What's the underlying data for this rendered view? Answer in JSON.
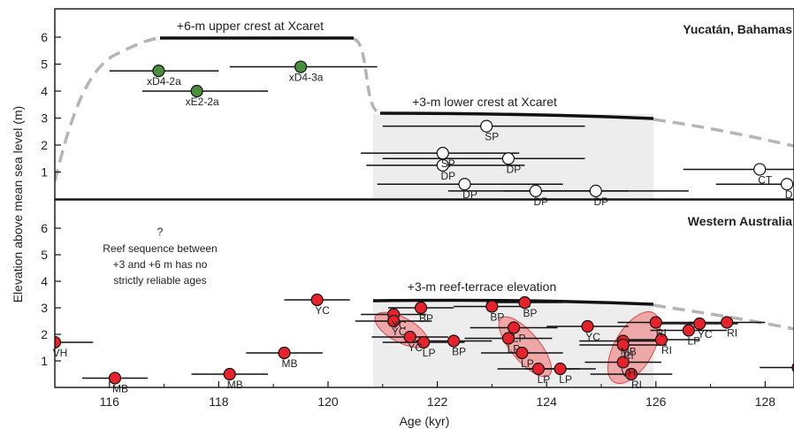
{
  "chart_data": [
    {
      "type": "scatter",
      "region_label": "Yucatán, Bahamas",
      "ylim": [
        0,
        6.7
      ],
      "xlim": [
        115,
        128.8
      ],
      "yticks": [
        "1",
        "2",
        "3",
        "4",
        "5",
        "6"
      ],
      "shaded_range": [
        121,
        126.2
      ],
      "annotations": [
        {
          "text": "+6-m upper crest at Xcaret",
          "x": 118.9,
          "y": 6.35
        },
        {
          "text": "+3-m lower crest at Xcaret",
          "x": 123.0,
          "y": 3.45
        }
      ],
      "points": [
        {
          "label": "xD4-2a",
          "x": 116.9,
          "y": 4.75,
          "xerr": [
            116.0,
            118.0
          ],
          "fill": "#4a8f3a"
        },
        {
          "label": "xE2-2a",
          "x": 117.6,
          "y": 4.0,
          "xerr": [
            116.6,
            118.9
          ],
          "fill": "#4a8f3a"
        },
        {
          "label": "xD4-3a",
          "x": 119.5,
          "y": 4.9,
          "xerr": [
            118.2,
            120.9
          ],
          "fill": "#4a8f3a"
        },
        {
          "label": "SP",
          "x": 122.9,
          "y": 2.7,
          "xerr": [
            121.0,
            124.7
          ],
          "fill": "#ffffff"
        },
        {
          "label": "SP",
          "x": 122.1,
          "y": 1.7,
          "xerr": [
            120.6,
            123.5
          ],
          "fill": "#ffffff"
        },
        {
          "label": "DP",
          "x": 123.3,
          "y": 1.5,
          "xerr": [
            121.0,
            124.7
          ],
          "fill": "#ffffff"
        },
        {
          "label": "DP",
          "x": 122.1,
          "y": 1.25,
          "xerr": [
            120.7,
            123.6
          ],
          "fill": "#ffffff"
        },
        {
          "label": "DP",
          "x": 122.5,
          "y": 0.55,
          "xerr": [
            120.9,
            124.3
          ],
          "fill": "#ffffff"
        },
        {
          "label": "DP",
          "x": 123.8,
          "y": 0.3,
          "xerr": [
            122.2,
            125.5
          ],
          "fill": "#ffffff"
        },
        {
          "label": "DP",
          "x": 124.9,
          "y": 0.3,
          "xerr": [
            123.2,
            126.6
          ],
          "fill": "#ffffff"
        },
        {
          "label": "CT",
          "x": 127.9,
          "y": 1.1,
          "xerr": [
            126.5,
            129.4
          ],
          "fill": "#ffffff"
        },
        {
          "label": "DP",
          "x": 128.4,
          "y": 0.55,
          "xerr": [
            127.1,
            129.9
          ],
          "fill": "#ffffff"
        }
      ]
    },
    {
      "type": "scatter",
      "region_label": "Western Australia",
      "ylim": [
        0,
        6.7
      ],
      "xlim": [
        115,
        128.8
      ],
      "yticks": [
        "1",
        "2",
        "3",
        "4",
        "5",
        "6"
      ],
      "xticks": [
        "116",
        "118",
        "120",
        "122",
        "124",
        "126",
        "128"
      ],
      "xlabel": "Age (kyr)",
      "ylabel": "Elevation above mean sea level (m)",
      "shaded_range": [
        121,
        126.2
      ],
      "note_lines": [
        "?",
        "Reef sequence between",
        "+3 and +6 m has no",
        "strictly reliable ages"
      ],
      "annotations": [
        {
          "text": "+3-m reef-terrace elevation",
          "x": 123.3,
          "y": 3.65
        }
      ],
      "points": [
        {
          "label": "VH",
          "x": 115.0,
          "y": 1.7,
          "xerr": [
            114.3,
            115.7
          ]
        },
        {
          "label": "MB",
          "x": 116.1,
          "y": 0.35,
          "xerr": [
            115.5,
            116.7
          ]
        },
        {
          "label": "MB",
          "x": 118.2,
          "y": 0.5,
          "xerr": [
            117.5,
            118.9
          ]
        },
        {
          "label": "MB",
          "x": 119.2,
          "y": 1.3,
          "xerr": [
            118.5,
            119.9
          ]
        },
        {
          "label": "YC",
          "x": 119.8,
          "y": 3.3,
          "xerr": [
            119.2,
            120.4
          ]
        },
        {
          "label": "YC",
          "x": 121.2,
          "y": 2.75,
          "xerr": [
            120.6,
            121.8
          ]
        },
        {
          "label": "YC",
          "x": 121.2,
          "y": 2.5,
          "xerr": [
            120.5,
            121.9
          ]
        },
        {
          "label": "BP",
          "x": 121.7,
          "y": 3.0,
          "xerr": [
            121.1,
            122.3
          ]
        },
        {
          "label": "YC",
          "x": 121.5,
          "y": 1.9,
          "xerr": [
            120.8,
            122.2
          ]
        },
        {
          "label": "LP",
          "x": 121.75,
          "y": 1.7,
          "xerr": [
            121.0,
            122.5
          ]
        },
        {
          "label": "BP",
          "x": 122.3,
          "y": 1.75,
          "xerr": [
            121.6,
            123.0
          ]
        },
        {
          "label": "BP",
          "x": 123.0,
          "y": 3.05,
          "xerr": [
            122.3,
            123.7
          ]
        },
        {
          "label": "BP",
          "x": 123.6,
          "y": 3.2,
          "xerr": [
            122.9,
            124.3
          ]
        },
        {
          "label": "LP",
          "x": 123.4,
          "y": 2.25,
          "xerr": [
            122.6,
            124.2
          ]
        },
        {
          "label": "LP",
          "x": 123.3,
          "y": 1.85,
          "xerr": [
            122.5,
            124.1
          ]
        },
        {
          "label": "LP",
          "x": 123.55,
          "y": 1.3,
          "xerr": [
            122.8,
            124.3
          ]
        },
        {
          "label": "LP",
          "x": 123.85,
          "y": 0.7,
          "xerr": [
            123.1,
            124.6
          ]
        },
        {
          "label": "LP",
          "x": 124.25,
          "y": 0.7,
          "xerr": [
            123.6,
            124.9
          ]
        },
        {
          "label": "YC",
          "x": 124.75,
          "y": 2.3,
          "xerr": [
            124.0,
            125.5
          ]
        },
        {
          "label": "MB",
          "x": 125.4,
          "y": 1.75,
          "xerr": [
            124.6,
            126.2
          ]
        },
        {
          "label": "RI",
          "x": 125.4,
          "y": 1.6,
          "xerr": [
            124.6,
            126.2
          ]
        },
        {
          "label": "VH",
          "x": 125.4,
          "y": 0.95,
          "xerr": [
            124.7,
            126.1
          ]
        },
        {
          "label": "RI",
          "x": 125.55,
          "y": 0.5,
          "xerr": [
            124.8,
            126.3
          ]
        },
        {
          "label": "RI",
          "x": 126.0,
          "y": 2.45,
          "xerr": [
            125.3,
            126.7
          ]
        },
        {
          "label": "RI",
          "x": 126.1,
          "y": 1.8,
          "xerr": [
            125.4,
            126.8
          ]
        },
        {
          "label": "LP",
          "x": 126.6,
          "y": 2.15,
          "xerr": [
            125.9,
            127.3
          ]
        },
        {
          "label": "YC",
          "x": 126.8,
          "y": 2.4,
          "xerr": [
            126.1,
            127.5
          ]
        },
        {
          "label": "RI",
          "x": 127.3,
          "y": 2.45,
          "xerr": [
            126.6,
            128.0
          ]
        },
        {
          "label": "YC",
          "x": 128.6,
          "y": 0.75,
          "xerr": [
            127.9,
            129.3
          ]
        }
      ]
    }
  ]
}
